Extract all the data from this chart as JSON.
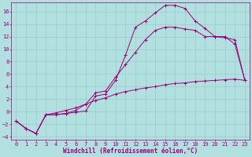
{
  "xlabel": "Windchill (Refroidissement éolien,°C)",
  "background_color": "#b2e0e0",
  "grid_color": "#9ecece",
  "line_color": "#990077",
  "xlim": [
    -0.5,
    23.5
  ],
  "ylim": [
    -4.5,
    17.5
  ],
  "xticks": [
    0,
    1,
    2,
    3,
    4,
    5,
    6,
    7,
    8,
    9,
    10,
    11,
    12,
    13,
    14,
    15,
    16,
    17,
    18,
    19,
    20,
    21,
    22,
    23
  ],
  "yticks": [
    -4,
    -2,
    0,
    2,
    4,
    6,
    8,
    10,
    12,
    14,
    16
  ],
  "curve1_x": [
    0,
    1,
    2,
    3,
    4,
    5,
    6,
    7,
    8,
    9,
    10,
    11,
    12,
    13,
    14,
    15,
    16,
    17,
    18,
    19,
    20,
    21,
    22,
    23
  ],
  "curve1_y": [
    -1.5,
    -2.7,
    -3.5,
    -0.5,
    -0.5,
    -0.3,
    -0.1,
    0.1,
    2.5,
    2.8,
    5.0,
    9.0,
    13.5,
    14.5,
    15.8,
    17.0,
    17.0,
    16.5,
    14.5,
    13.3,
    12.0,
    11.8,
    11.5,
    5.0
  ],
  "curve2_x": [
    0,
    1,
    2,
    3,
    4,
    5,
    6,
    7,
    8,
    9,
    10,
    11,
    12,
    13,
    14,
    15,
    16,
    17,
    18,
    19,
    20,
    21,
    22,
    23
  ],
  "curve2_y": [
    -1.5,
    -2.7,
    -3.5,
    -0.5,
    -0.2,
    0.2,
    0.6,
    1.2,
    1.8,
    2.2,
    2.8,
    3.2,
    3.5,
    3.8,
    4.0,
    4.3,
    4.5,
    4.6,
    4.8,
    4.9,
    5.0,
    5.1,
    5.2,
    5.0
  ],
  "curve3_x": [
    0,
    1,
    2,
    3,
    4,
    5,
    6,
    7,
    8,
    9,
    10,
    11,
    12,
    13,
    14,
    15,
    16,
    17,
    18,
    19,
    20,
    21,
    22,
    23
  ],
  "curve3_y": [
    -1.5,
    -2.7,
    -3.5,
    -0.5,
    -0.5,
    -0.3,
    0.2,
    1.2,
    3.0,
    3.3,
    5.5,
    7.5,
    9.5,
    11.5,
    13.0,
    13.5,
    13.5,
    13.2,
    13.0,
    12.0,
    12.0,
    12.0,
    10.8,
    5.0
  ]
}
